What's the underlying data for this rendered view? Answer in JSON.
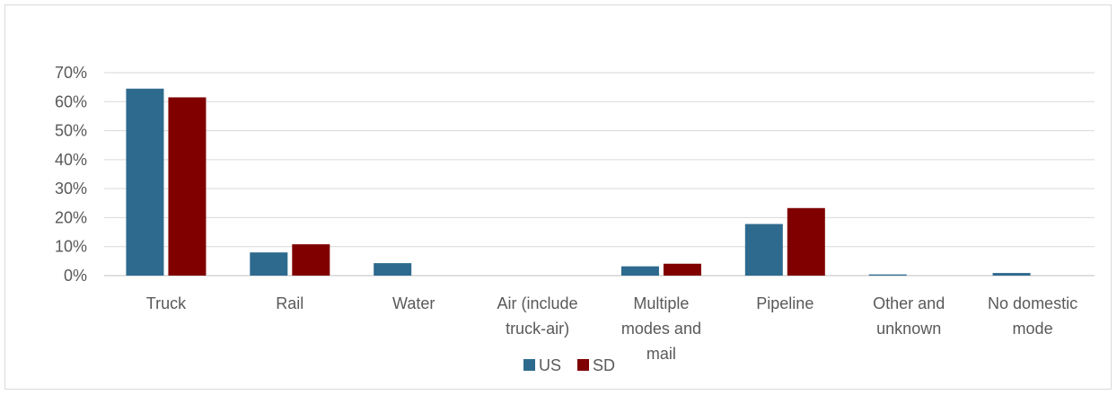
{
  "chart_data": {
    "type": "bar",
    "categories": [
      [
        "Truck"
      ],
      [
        "Rail"
      ],
      [
        "Water"
      ],
      [
        "Air (include",
        "truck-air)"
      ],
      [
        "Multiple",
        "modes and",
        "mail"
      ],
      [
        "Pipeline"
      ],
      [
        "Other and",
        "unknown"
      ],
      [
        "No domestic",
        "mode"
      ]
    ],
    "series": [
      {
        "name": "US",
        "color": "#2e6a8e",
        "values": [
          64.5,
          8.0,
          4.3,
          0.0,
          3.2,
          17.8,
          0.4,
          0.9
        ]
      },
      {
        "name": "SD",
        "color": "#800000",
        "values": [
          61.5,
          10.8,
          0.0,
          0.0,
          4.1,
          23.3,
          0.0,
          0.0
        ]
      }
    ],
    "y_ticks": [
      "0%",
      "10%",
      "20%",
      "30%",
      "40%",
      "50%",
      "60%",
      "70%"
    ],
    "ylim": [
      0,
      70
    ],
    "grid": true,
    "legend_position": "bottom-center"
  }
}
